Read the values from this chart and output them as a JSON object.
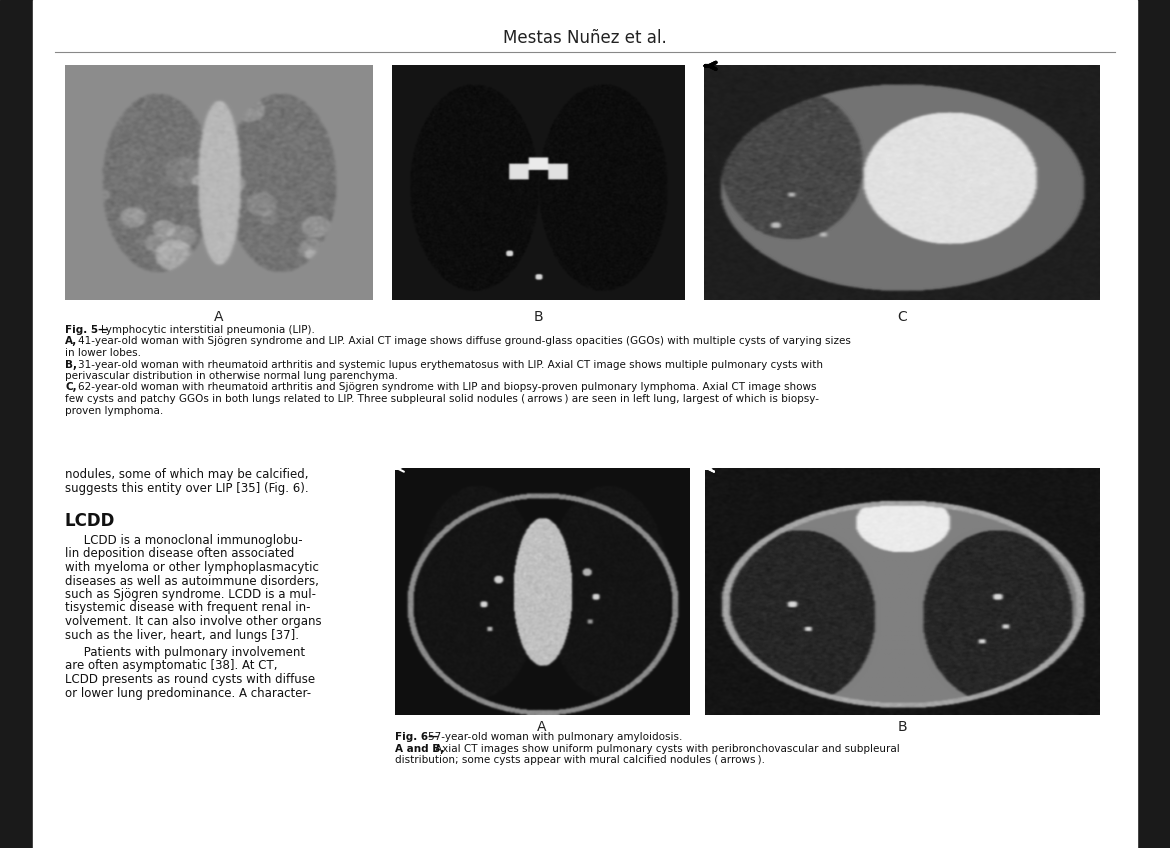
{
  "background_color": "#ffffff",
  "dark_bar_color": "#1a1a1a",
  "header_text": "Mestas Nuñez et al.",
  "header_fontsize": 12,
  "header_color": "#222222",
  "line_color": "#888888",
  "caption_fontsize": 7.5,
  "body_fontsize": 8.5,
  "label_fontsize": 10,
  "lcdd_heading_fontsize": 12,
  "fig5_title": "Fig. 5—Lymphocytic interstitial pneumonia (LIP).",
  "fig5A": "A, 41-year-old woman with Sjögren syndrome and LIP. Axial CT image shows diffuse ground-glass opacities (GGOs) with multiple cysts of varying sizes in lower lobes.",
  "fig5B": "B, 31-year-old woman with rheumatoid arthritis and systemic lupus erythematosus with LIP. Axial CT image shows multiple pulmonary cysts with perivascular distribution in otherwise normal lung parenchyma.",
  "fig5C": "C, 62-year-old woman with rheumatoid arthritis and Sjögren syndrome with LIP and biopsy-proven pulmonary lymphoma. Axial CT image shows few cysts and patchy GGOs in both lungs related to LIP. Three subpleural solid nodules (arrows) are seen in left lung, largest of which is biopsy-proven lymphoma.",
  "fig6_title": "Fig. 6—57-year-old woman with pulmonary amyloidosis.",
  "fig6_body": "A and B, Axial CT images show uniform pulmonary cysts with peribronchovascular and subpleural distribution; some cysts appear with mural calcified nodules (arrows).",
  "left_para1": "nodules, some of which may be calcified,\nsuggests this entity over LIP [35] (Fig. 6).",
  "lcdd_heading": "LCDD",
  "lcdd_para1": "     LCDD is a monoclonal immunoglobu-\nlin deposition disease often associated\nwith myeloma or other lymphoplasmacytic\ndiseases as well as autoimmune disorders,\nsuch as Sjögren syndrome. LCDD is a mul-\ntisystemic disease with frequent renal in-\nvolvement. It can also involve other organs\nsuch as the liver, heart, and lungs [37].",
  "lcdd_para2": "     Patients with pulmonary involvement\nare often asymptomatic [38]. At CT,\nLCDD presents as round cysts with diffuse\nor lower lung predominance. A character-"
}
